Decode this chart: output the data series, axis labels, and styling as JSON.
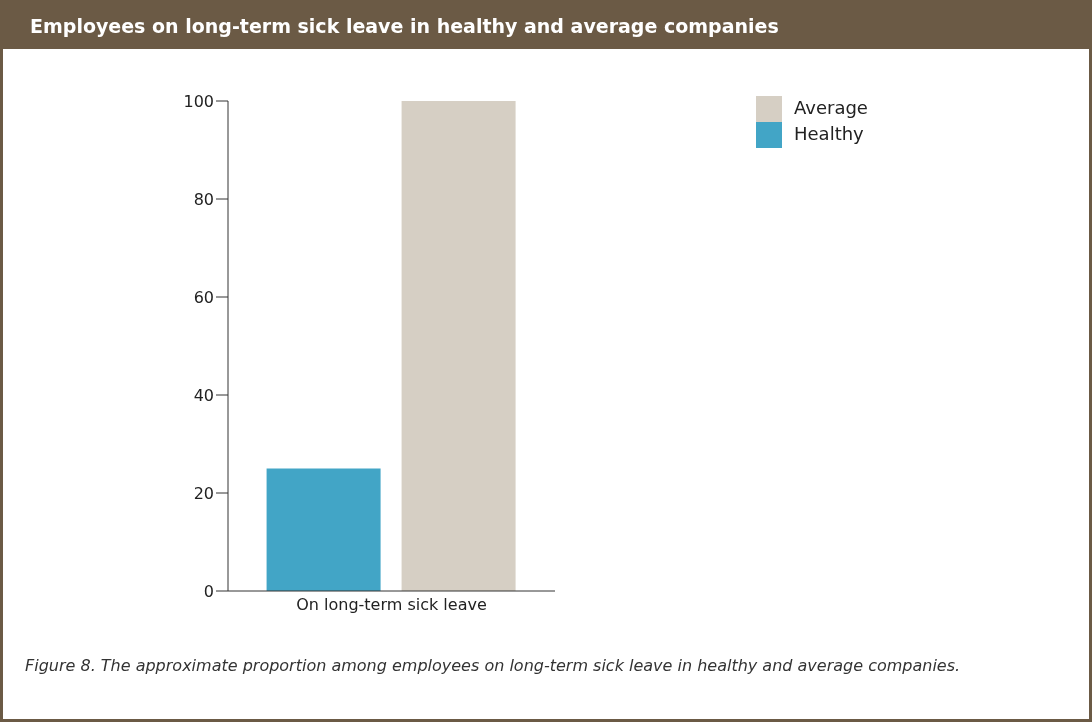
{
  "chart_data": {
    "type": "bar",
    "title": "Employees on long-term sick leave in healthy and average companies",
    "categories": [
      "On long-term sick leave"
    ],
    "series": [
      {
        "name": "Healthy",
        "color": "#42a5c6",
        "values": [
          25
        ]
      },
      {
        "name": "Average",
        "color": "#d6cfc4",
        "values": [
          100
        ]
      }
    ],
    "ylim": [
      0,
      100
    ],
    "yticks": [
      0,
      20,
      40,
      60,
      80,
      100
    ],
    "grid": false,
    "legend": "top right",
    "annotations": [
      "Figure 8. The approximate proportion among employees on long-term sick leave in healthy and average companies."
    ]
  }
}
